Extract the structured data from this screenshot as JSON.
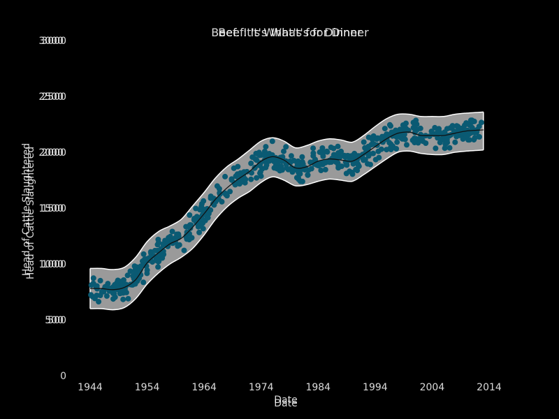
{
  "chart_data": {
    "type": "scatter",
    "title": "Beef: It's What's for Dinner",
    "title_echo": "Beef: It's What's for Dinner",
    "xlabel": "Date",
    "xlabel_echo": "Date",
    "ylabel": "Head of Cattle Slaughtered",
    "ylabel_echo": "Head of Cattle Slaughtered",
    "xlim": [
      1941,
      2018
    ],
    "ylim": [
      0,
      3000
    ],
    "xticks": [
      "1944",
      "1954",
      "1964",
      "1974",
      "1984",
      "1994",
      "2004",
      "2014"
    ],
    "xtick_values": [
      1944,
      1954,
      1964,
      1974,
      1984,
      1994,
      2004,
      2014
    ],
    "yticks": [
      "0",
      "500",
      "1000",
      "1500",
      "2000",
      "2500",
      "3000"
    ],
    "ytick_values": [
      0,
      500,
      1000,
      1500,
      2000,
      2500,
      3000
    ],
    "ytick_echo": [
      "",
      "500",
      "1000",
      "1500",
      "2000",
      "2500",
      "3000"
    ],
    "grid": false,
    "colors": {
      "points": "#0a5a73",
      "band": "#9a9a9a",
      "band_edge": "#ffffff",
      "trend": "#111111",
      "background": "#000000",
      "text": "#ffffff"
    },
    "trend": {
      "name": "",
      "x": [
        1944,
        1946,
        1948,
        1950,
        1952,
        1954,
        1956,
        1958,
        1960,
        1962,
        1964,
        1966,
        1968,
        1970,
        1972,
        1974,
        1976,
        1978,
        1980,
        1982,
        1984,
        1986,
        1988,
        1990,
        1992,
        1994,
        1996,
        1998,
        2000,
        2002,
        2004,
        2006,
        2008,
        2010,
        2013
      ],
      "y": [
        780,
        780,
        770,
        790,
        860,
        1010,
        1100,
        1180,
        1230,
        1330,
        1450,
        1580,
        1680,
        1760,
        1830,
        1920,
        1960,
        1930,
        1860,
        1870,
        1920,
        1940,
        1930,
        1920,
        1980,
        2050,
        2120,
        2170,
        2180,
        2150,
        2150,
        2150,
        2170,
        2190,
        2200
      ]
    },
    "band_upper": [
      960,
      960,
      950,
      970,
      1060,
      1200,
      1290,
      1340,
      1400,
      1520,
      1640,
      1770,
      1870,
      1940,
      2020,
      2100,
      2130,
      2100,
      2040,
      2060,
      2100,
      2120,
      2110,
      2090,
      2150,
      2230,
      2300,
      2340,
      2340,
      2320,
      2320,
      2320,
      2340,
      2350,
      2360
    ],
    "band_lower": [
      600,
      600,
      590,
      610,
      690,
      820,
      920,
      1000,
      1060,
      1140,
      1260,
      1400,
      1510,
      1590,
      1650,
      1730,
      1780,
      1750,
      1700,
      1710,
      1740,
      1760,
      1750,
      1740,
      1800,
      1870,
      1940,
      2000,
      2010,
      1990,
      1980,
      1980,
      2000,
      2010,
      2020
    ],
    "point_count": 600,
    "point_x_range": [
      1944,
      2013
    ]
  }
}
